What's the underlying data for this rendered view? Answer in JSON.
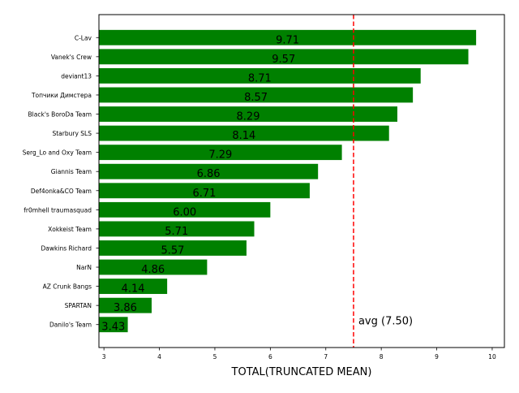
{
  "chart_data": {
    "type": "bar",
    "orientation": "horizontal",
    "title": "",
    "xlabel": "TOTAL(TRUNCATED MEAN)",
    "ylabel": "",
    "xlim": [
      2.91,
      10.22
    ],
    "xticks": [
      "3",
      "4",
      "5",
      "6",
      "7",
      "8",
      "9",
      "10"
    ],
    "grid": false,
    "bar_color": "#008000",
    "categories": [
      "C-Lav",
      "Vanek's Crew",
      "deviant13",
      "Топчики Димстера",
      "Black's BoroDa Team",
      "Starbury SLS",
      "Serg_Lo and Oxy Team",
      "Giannis Team",
      "Def4onka&CO Team",
      "fr0mhell traumasquad",
      "Xokkeist Team",
      "Dawkins Richard",
      "NarN",
      "AZ Crunk Bangs",
      "SPARTAN",
      "Danilo's Team"
    ],
    "values": [
      9.71,
      9.57,
      8.71,
      8.57,
      8.29,
      8.14,
      7.29,
      6.86,
      6.71,
      6.0,
      5.71,
      5.57,
      4.86,
      4.14,
      3.86,
      3.43
    ],
    "value_labels": [
      "9.71",
      "9.57",
      "8.71",
      "8.57",
      "8.29",
      "8.14",
      "7.29",
      "6.86",
      "6.71",
      "6.00",
      "5.71",
      "5.57",
      "4.86",
      "4.14",
      "3.86",
      "3.43"
    ],
    "reference_line": {
      "value": 7.5,
      "label": "avg (7.50)",
      "color": "#ff0000",
      "style": "dashed"
    }
  }
}
